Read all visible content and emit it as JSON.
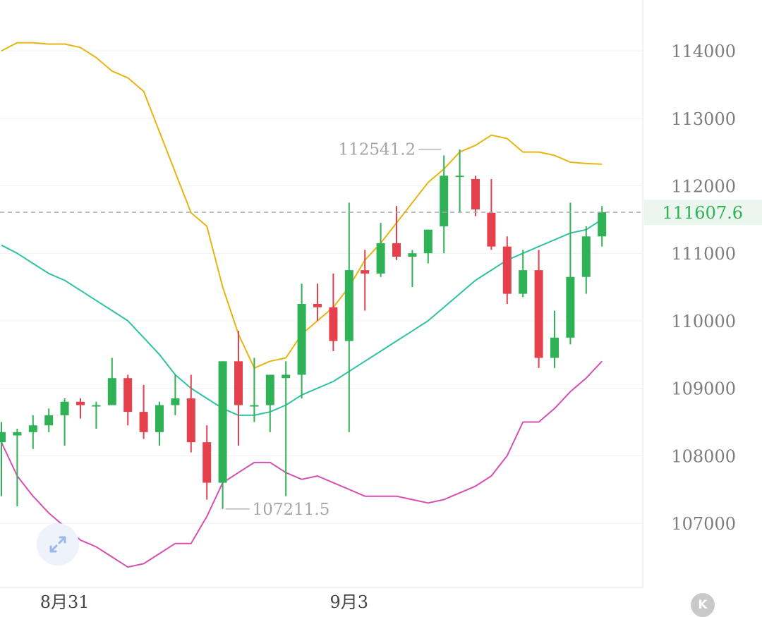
{
  "chart_data": {
    "type": "candlestick",
    "title": "",
    "y_ticks": [
      107000,
      108000,
      109000,
      110000,
      111000,
      112000,
      113000,
      114000
    ],
    "ylim": [
      106000,
      114650
    ],
    "x_labels": [
      {
        "index": 4,
        "label": "8月31"
      },
      {
        "index": 22,
        "label": "9月3"
      }
    ],
    "current_price": {
      "value": 111607.6,
      "label": "111607.6"
    },
    "annotations": [
      {
        "text": "112541.2",
        "index": 28,
        "value": 112541.2,
        "side": "left"
      },
      {
        "text": "107211.5",
        "index": 14,
        "value": 107211.5,
        "side": "right"
      }
    ],
    "candles": [
      {
        "o": 108200,
        "h": 108500,
        "l": 107400,
        "c": 108350
      },
      {
        "o": 108300,
        "h": 108400,
        "l": 107250,
        "c": 108350
      },
      {
        "o": 108350,
        "h": 108600,
        "l": 108100,
        "c": 108450
      },
      {
        "o": 108450,
        "h": 108700,
        "l": 108350,
        "c": 108600
      },
      {
        "o": 108600,
        "h": 108850,
        "l": 108150,
        "c": 108800
      },
      {
        "o": 108800,
        "h": 108850,
        "l": 108550,
        "c": 108750
      },
      {
        "o": 108750,
        "h": 108800,
        "l": 108400,
        "c": 108750
      },
      {
        "o": 108750,
        "h": 109450,
        "l": 108750,
        "c": 109150
      },
      {
        "o": 109150,
        "h": 109200,
        "l": 108450,
        "c": 108650
      },
      {
        "o": 108650,
        "h": 109050,
        "l": 108250,
        "c": 108350
      },
      {
        "o": 108350,
        "h": 108800,
        "l": 108150,
        "c": 108750
      },
      {
        "o": 108750,
        "h": 109200,
        "l": 108600,
        "c": 108850
      },
      {
        "o": 108850,
        "h": 109200,
        "l": 108050,
        "c": 108200
      },
      {
        "o": 108200,
        "h": 108450,
        "l": 107350,
        "c": 107600
      },
      {
        "o": 107600,
        "h": 109400,
        "l": 107211.5,
        "c": 109400
      },
      {
        "o": 109400,
        "h": 109850,
        "l": 108150,
        "c": 108750
      },
      {
        "o": 108750,
        "h": 109450,
        "l": 108500,
        "c": 108750
      },
      {
        "o": 108750,
        "h": 109200,
        "l": 108350,
        "c": 109200
      },
      {
        "o": 109150,
        "h": 109400,
        "l": 107400,
        "c": 109200
      },
      {
        "o": 109200,
        "h": 110550,
        "l": 108850,
        "c": 110250
      },
      {
        "o": 110250,
        "h": 110550,
        "l": 110000,
        "c": 110200
      },
      {
        "o": 110200,
        "h": 110700,
        "l": 109550,
        "c": 109700
      },
      {
        "o": 109700,
        "h": 111750,
        "l": 108350,
        "c": 110750
      },
      {
        "o": 110750,
        "h": 111050,
        "l": 110150,
        "c": 110700
      },
      {
        "o": 110700,
        "h": 111450,
        "l": 110650,
        "c": 111150
      },
      {
        "o": 111150,
        "h": 111700,
        "l": 110900,
        "c": 110950
      },
      {
        "o": 110950,
        "h": 111050,
        "l": 110500,
        "c": 111000
      },
      {
        "o": 111000,
        "h": 111350,
        "l": 110850,
        "c": 111350
      },
      {
        "o": 111400,
        "h": 112450,
        "l": 111000,
        "c": 112150
      },
      {
        "o": 112150,
        "h": 112541.2,
        "l": 111600,
        "c": 112150
      },
      {
        "o": 112100,
        "h": 112150,
        "l": 111550,
        "c": 111650
      },
      {
        "o": 111600,
        "h": 112100,
        "l": 111050,
        "c": 111100
      },
      {
        "o": 111100,
        "h": 111250,
        "l": 110250,
        "c": 110400
      },
      {
        "o": 110400,
        "h": 111050,
        "l": 110350,
        "c": 110750
      },
      {
        "o": 110750,
        "h": 111050,
        "l": 109300,
        "c": 109450
      },
      {
        "o": 109450,
        "h": 110150,
        "l": 109300,
        "c": 109750
      },
      {
        "o": 109750,
        "h": 111750,
        "l": 109650,
        "c": 110650
      },
      {
        "o": 110650,
        "h": 111400,
        "l": 110400,
        "c": 111250
      },
      {
        "o": 111250,
        "h": 111700,
        "l": 111100,
        "c": 111607.6
      }
    ],
    "bands": {
      "upper": [
        114000,
        114120,
        114120,
        114100,
        114100,
        114050,
        113900,
        113700,
        113600,
        113400,
        112800,
        112200,
        111600,
        111400,
        110500,
        109800,
        109300,
        109400,
        109450,
        109800,
        110000,
        110200,
        110500,
        110900,
        111150,
        111450,
        111750,
        112050,
        112250,
        112500,
        112600,
        112750,
        112700,
        112500,
        112500,
        112450,
        112350,
        112330,
        112320
      ],
      "middle": [
        111120,
        111000,
        110850,
        110700,
        110600,
        110450,
        110300,
        110150,
        110000,
        109750,
        109500,
        109200,
        109000,
        108850,
        108700,
        108600,
        108600,
        108650,
        108750,
        108900,
        109000,
        109100,
        109250,
        109400,
        109550,
        109700,
        109850,
        110000,
        110200,
        110400,
        110600,
        110750,
        110900,
        111000,
        111100,
        111200,
        111300,
        111350,
        111500
      ],
      "lower": [
        108200,
        107700,
        107400,
        107150,
        106950,
        106750,
        106650,
        106500,
        106350,
        106400,
        106550,
        106700,
        106700,
        107100,
        107600,
        107750,
        107900,
        107900,
        107750,
        107650,
        107700,
        107600,
        107500,
        107400,
        107400,
        107400,
        107350,
        107300,
        107350,
        107450,
        107550,
        107700,
        108000,
        108500,
        108500,
        108700,
        108950,
        109150,
        109400
      ]
    },
    "colors": {
      "up": "#2fb155",
      "down": "#e5414d",
      "upper_band": "#e6b512",
      "middle_band": "#2fc2a2",
      "lower_band": "#d64fb2",
      "grid": "#f1f1f1",
      "tick_text": "#7c7c7c",
      "annotation_text": "#a6a6a6",
      "current_price_text": "#2fb155",
      "current_price_bg": "#eaf6ee",
      "dashed_line": "#a8a8a8"
    }
  }
}
